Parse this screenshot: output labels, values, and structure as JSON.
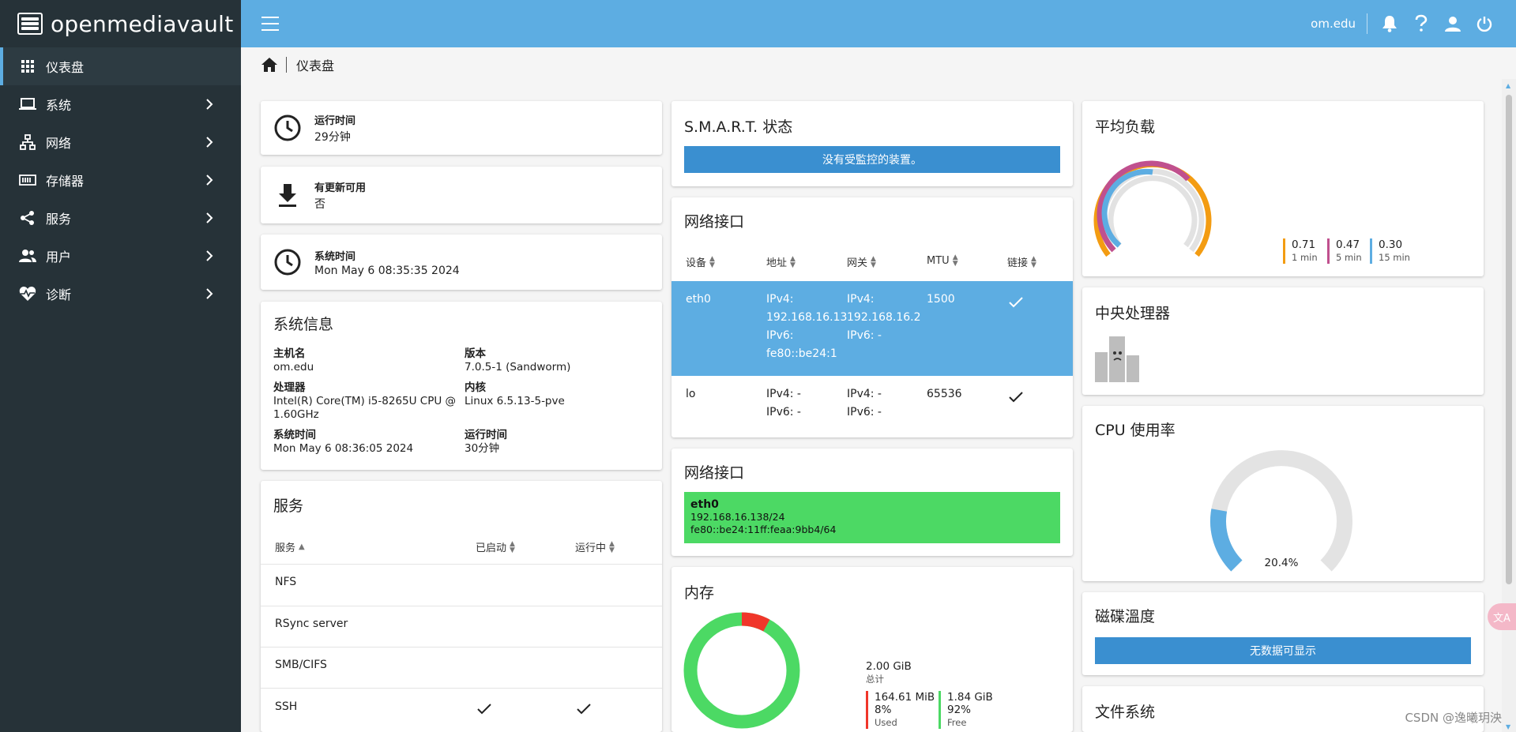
{
  "app": {
    "name": "openmediavault",
    "host": "om.edu"
  },
  "sidebar": {
    "items": [
      {
        "label": "仪表盘",
        "icon": "dashboard-grid-icon",
        "active": true
      },
      {
        "label": "系统",
        "icon": "laptop-icon"
      },
      {
        "label": "网络",
        "icon": "network-icon"
      },
      {
        "label": "存储器",
        "icon": "storage-icon"
      },
      {
        "label": "服务",
        "icon": "share-icon"
      },
      {
        "label": "用户",
        "icon": "users-icon"
      },
      {
        "label": "诊断",
        "icon": "heart-pulse-icon"
      }
    ]
  },
  "breadcrumb": {
    "current": "仪表盘"
  },
  "uptime_card": {
    "label": "运行时间",
    "value": "29分钟"
  },
  "update_card": {
    "label": "有更新可用",
    "value": "否"
  },
  "systime_card": {
    "label": "系统时间",
    "value": "Mon May 6 08:35:35 2024"
  },
  "sysinfo": {
    "title": "系统信息",
    "hostname_label": "主机名",
    "hostname": "om.edu",
    "version_label": "版本",
    "version": "7.0.5-1 (Sandworm)",
    "cpu_label": "处理器",
    "cpu_line1": "Intel(R) Core(TM) i5-8265U CPU @",
    "cpu_line2": "1.60GHz",
    "kernel_label": "内核",
    "kernel": "Linux 6.5.13-5-pve",
    "time_label": "系统时间",
    "time": "Mon May 6 08:36:05 2024",
    "uptime_label": "运行时间",
    "uptime": "30分钟"
  },
  "services": {
    "title": "服务",
    "columns": [
      "服务",
      "已启动",
      "运行中"
    ],
    "rows": [
      {
        "name": "NFS",
        "enabled": false,
        "running": false
      },
      {
        "name": "RSync server",
        "enabled": false,
        "running": false
      },
      {
        "name": "SMB/CIFS",
        "enabled": false,
        "running": false
      },
      {
        "name": "SSH",
        "enabled": true,
        "running": true
      }
    ]
  },
  "smart": {
    "title": "S.M.A.R.T. 状态",
    "message": "没有受監控的装置。"
  },
  "network_table": {
    "title": "网络接口",
    "columns": [
      "设备",
      "地址",
      "网关",
      "MTU",
      "链接"
    ],
    "rows": [
      {
        "device": "eth0",
        "addr1": "IPv4:",
        "addr2": "192.168.16.13",
        "addr3": "IPv6:",
        "addr4": "fe80::be24:1",
        "gw1": "IPv4:",
        "gw2": "192.168.16.2",
        "gw3": "IPv6: -",
        "mtu": "1500",
        "link": true
      },
      {
        "device": "lo",
        "addr1": "IPv4: -",
        "addr2": "IPv6: -",
        "gw1": "IPv4: -",
        "gw2": "IPv6: -",
        "mtu": "65536",
        "link": true
      }
    ]
  },
  "network_tile": {
    "title": "网络接口",
    "name": "eth0",
    "ipv4": "192.168.16.138/24",
    "ipv6": "fe80::be24:11ff:feaa:9bb4/64"
  },
  "memory": {
    "title": "内存",
    "total_value": "2.00 GiB",
    "total_label": "总计",
    "used_value": "164.61 MiB",
    "used_pct": "8%",
    "used_label": "Used",
    "free_value": "1.84 GiB",
    "free_pct": "92%",
    "free_label": "Free",
    "used_fraction": 0.08,
    "colors": {
      "used": "#f0362a",
      "free": "#4cd964"
    }
  },
  "load": {
    "title": "平均负载",
    "items": [
      {
        "value": "0.71",
        "label": "1 min",
        "color": "#f39c12"
      },
      {
        "value": "0.47",
        "label": "5 min",
        "color": "#c0508e"
      },
      {
        "value": "0.30",
        "label": "15 min",
        "color": "#5dade2"
      }
    ]
  },
  "cpu_card": {
    "title": "中央处理器"
  },
  "cpu_usage": {
    "title": "CPU 使用率",
    "value_text": "20.4%",
    "fraction": 0.204,
    "color": "#5dade2"
  },
  "disk_temp": {
    "title": "磁碟溫度",
    "message": "无数据可显示"
  },
  "filesystem": {
    "title": "文件系统"
  },
  "watermark": "CSDN @逸曦玥泱",
  "translate_fab": "文A"
}
